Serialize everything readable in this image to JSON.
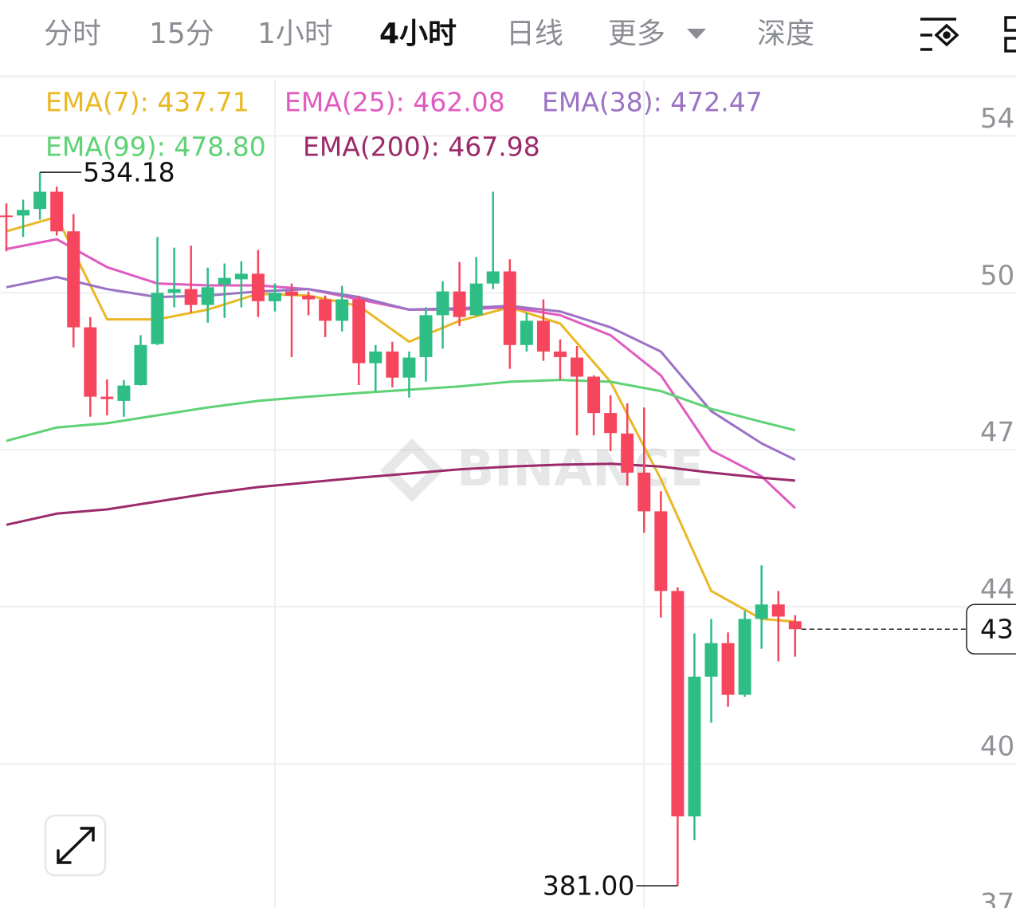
{
  "tabs": [
    "分时",
    "15分",
    "1小时",
    "4小时",
    "日线",
    "更多",
    "深度"
  ],
  "active_tab": 3,
  "chart_data": {
    "type": "candlestick",
    "watermark": "BINANCE",
    "up_color": "#2ebd85",
    "down_color": "#f6465d",
    "candles": {
      "open": [
        524.9,
        524.9,
        526.3,
        530.0,
        521.5,
        500.9,
        486.0,
        485.1,
        488.5,
        497.3,
        508.3,
        509.1,
        505.7,
        510.1,
        511.2,
        512.4,
        506.5,
        508.6,
        507.7,
        506.9,
        502.3,
        506.9,
        493.2,
        495.7,
        490.1,
        494.5,
        503.5,
        508.6,
        503.5,
        510.3,
        512.9,
        497.1,
        502.3,
        495.7,
        494.4,
        490.3,
        482.5,
        478.1,
        469.7,
        461.4,
        444.3,
        395.9,
        425.9,
        433.1,
        422.0,
        438.3,
        441.4,
        437.8
      ],
      "high": [
        527.5,
        528.3,
        534.18,
        531.1,
        525.2,
        503.1,
        489.7,
        489.6,
        499.2,
        520.3,
        518.0,
        518.4,
        513.7,
        514.6,
        515.1,
        517.5,
        510.3,
        510.3,
        508.6,
        507.7,
        509.8,
        507.7,
        497.1,
        497.8,
        495.7,
        505.2,
        510.8,
        514.9,
        516.0,
        530.0,
        515.5,
        504.0,
        506.9,
        498.3,
        496.9,
        490.6,
        486.3,
        484.6,
        483.7,
        465.7,
        445.1,
        435.2,
        438.3,
        435.4,
        440.0,
        449.8,
        444.3,
        439.1
      ],
      "low": [
        517.2,
        520.3,
        524.0,
        520.6,
        496.6,
        481.7,
        482.0,
        481.7,
        488.4,
        497.1,
        505.2,
        504.0,
        501.9,
        502.9,
        505.2,
        503.1,
        504.3,
        494.5,
        503.5,
        498.8,
        500.0,
        488.5,
        487.2,
        488.0,
        485.8,
        489.2,
        496.3,
        501.2,
        503.3,
        509.1,
        492.0,
        495.7,
        493.7,
        489.7,
        477.7,
        477.7,
        474.3,
        466.9,
        456.8,
        438.6,
        381.0,
        390.8,
        416.0,
        419.4,
        421.6,
        431.9,
        429.2,
        430.2
      ],
      "close": [
        524.6,
        526.1,
        530.0,
        521.5,
        500.9,
        486.0,
        485.5,
        488.4,
        497.1,
        508.3,
        509.1,
        505.7,
        509.5,
        511.5,
        512.4,
        506.5,
        508.3,
        507.7,
        506.9,
        502.3,
        506.9,
        493.2,
        495.7,
        490.1,
        494.4,
        503.5,
        508.6,
        503.1,
        510.3,
        512.9,
        497.1,
        502.3,
        495.7,
        494.5,
        490.3,
        482.5,
        478.2,
        469.7,
        461.4,
        444.3,
        395.9,
        425.9,
        433.1,
        422.0,
        438.3,
        441.4,
        438.8,
        436.1
      ]
    },
    "max_label": "534.18",
    "min_label": "381.00",
    "current_price_label": "43",
    "series": [
      {
        "name": "EMA(7): 437.71",
        "color": "#e9b824",
        "x": [
          0,
          3,
          6,
          9,
          12,
          15,
          18,
          21,
          24,
          27,
          30,
          33,
          36,
          39,
          42,
          45,
          47
        ],
        "values": [
          521.5,
          524.6,
          502.6,
          502.6,
          504.7,
          508.1,
          507.7,
          505.5,
          497.8,
          502.3,
          505.2,
          501.7,
          489.2,
          468.3,
          444.3,
          438.3,
          437.71
        ]
      },
      {
        "name": "EMA(25): 462.08",
        "color": "#e05bbf",
        "x": [
          0,
          3,
          6,
          9,
          12,
          15,
          18,
          21,
          24,
          27,
          30,
          33,
          36,
          39,
          42,
          45,
          47
        ],
        "values": [
          517.7,
          519.8,
          513.8,
          510.3,
          509.9,
          509.9,
          509.1,
          506.9,
          504.7,
          504.7,
          505.2,
          503.5,
          499.2,
          490.6,
          474.5,
          468.9,
          462.08
        ]
      },
      {
        "name": "EMA(38): 472.47",
        "color": "#9b72c4",
        "x": [
          0,
          3,
          6,
          9,
          12,
          15,
          18,
          21,
          24,
          27,
          30,
          33,
          36,
          39,
          42,
          45,
          47
        ],
        "values": [
          509.5,
          511.7,
          509.1,
          507.4,
          507.7,
          508.6,
          509.1,
          507.4,
          504.7,
          505.0,
          505.5,
          504.3,
          500.9,
          495.7,
          482.9,
          476.0,
          472.47
        ]
      },
      {
        "name": "EMA(99): 478.80",
        "color": "#5fd275",
        "x": [
          0,
          3,
          6,
          9,
          12,
          15,
          18,
          21,
          24,
          27,
          30,
          33,
          36,
          39,
          42,
          45,
          47
        ],
        "values": [
          476.5,
          479.4,
          480.3,
          482.0,
          483.7,
          485.1,
          486.0,
          486.8,
          487.5,
          488.2,
          489.2,
          489.6,
          489.2,
          487.2,
          483.4,
          480.6,
          478.8
        ]
      },
      {
        "name": "EMA(200): 467.98",
        "color": "#9c2a6a",
        "x": [
          0,
          3,
          6,
          9,
          12,
          15,
          18,
          21,
          24,
          27,
          30,
          33,
          36,
          39,
          42,
          45,
          47
        ],
        "values": [
          458.5,
          460.9,
          461.8,
          463.5,
          465.2,
          466.6,
          467.6,
          468.6,
          469.5,
          470.4,
          471.0,
          471.4,
          471.6,
          471.0,
          469.7,
          468.6,
          467.98
        ]
      }
    ],
    "ylim": [
      373.5,
      554.05
    ],
    "yticks": [
      {
        "value": 542.0,
        "label": "54"
      },
      {
        "value": 508.3,
        "label": "50"
      },
      {
        "value": 474.6,
        "label": "47"
      },
      {
        "value": 440.9,
        "label": "44"
      },
      {
        "value": 407.2,
        "label": "40"
      },
      {
        "value": 373.5,
        "label": "37"
      }
    ],
    "grid": true
  }
}
